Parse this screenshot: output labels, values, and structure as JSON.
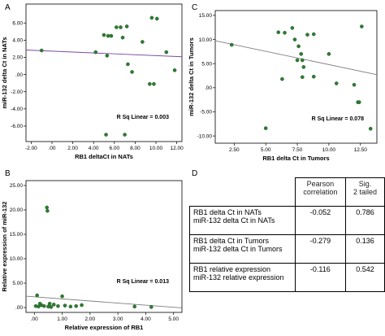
{
  "panel_labels": [
    "A",
    "B",
    "C",
    "D"
  ],
  "chart_data": [
    {
      "panel": "A",
      "type": "scatter",
      "xlabel": "RB1 deltaCt in NATs",
      "ylabel": "miR-132 delta Ct in NATs",
      "xlim": [
        -2.5,
        12.5
      ],
      "ylim": [
        -7.8,
        8.2
      ],
      "xticks": [
        -2,
        0,
        2,
        4,
        6,
        8,
        10,
        12
      ],
      "xtick_labels": [
        "-2.00",
        ".00",
        "2.00",
        "4.00",
        "6.00",
        "8.00",
        "10.00",
        "12.00"
      ],
      "yticks": [
        6,
        4,
        2,
        0,
        -2,
        -4,
        -6
      ],
      "ytick_labels": [
        "6.00",
        "4.00",
        "2.00",
        ".00",
        "-2.00",
        "-4.00",
        "-6.00"
      ],
      "points": [
        [
          -1.0,
          2.8
        ],
        [
          4.2,
          2.6
        ],
        [
          5.0,
          4.6
        ],
        [
          5.4,
          4.5
        ],
        [
          5.7,
          4.5
        ],
        [
          5.3,
          2.2
        ],
        [
          6.2,
          5.5
        ],
        [
          6.6,
          5.5
        ],
        [
          6.8,
          4.3
        ],
        [
          7.3,
          1.2
        ],
        [
          7.7,
          0.3
        ],
        [
          8.7,
          3.8
        ],
        [
          9.6,
          6.6
        ],
        [
          10.1,
          6.5
        ],
        [
          9.4,
          -1.1
        ],
        [
          9.8,
          -1.1
        ],
        [
          11.0,
          2.6
        ],
        [
          11.8,
          0.5
        ],
        [
          5.2,
          -7.0
        ],
        [
          7.0,
          -7.0
        ],
        [
          7.2,
          5.6
        ]
      ],
      "fit": {
        "intercept": 2.72,
        "slope": -0.052
      },
      "annotation": "R Sq Linear = 0.003"
    },
    {
      "panel": "B",
      "type": "scatter",
      "xlabel": "Relative expression of RB1",
      "ylabel": "Relative expression of miR-132",
      "xlim": [
        -0.3,
        5.3
      ],
      "ylim": [
        -1.0,
        26.0
      ],
      "xticks": [
        0,
        1,
        2,
        3,
        4,
        5
      ],
      "xtick_labels": [
        ".00",
        "1.00",
        "2.00",
        "3.00",
        "4.00",
        "5.00"
      ],
      "yticks": [
        0,
        5,
        10,
        15,
        20,
        25
      ],
      "ytick_labels": [
        ".00",
        "5.00",
        "10.00",
        "15.00",
        "20.00",
        "25.00"
      ],
      "points": [
        [
          0.45,
          20.5
        ],
        [
          0.47,
          19.8
        ],
        [
          0.1,
          2.5
        ],
        [
          0.05,
          0.3
        ],
        [
          0.15,
          0.2
        ],
        [
          0.25,
          0.5
        ],
        [
          0.35,
          0.3
        ],
        [
          0.5,
          0.2
        ],
        [
          0.55,
          0.8
        ],
        [
          0.7,
          0.6
        ],
        [
          0.85,
          0.3
        ],
        [
          1.0,
          2.3
        ],
        [
          1.1,
          0.4
        ],
        [
          1.3,
          0.2
        ],
        [
          1.5,
          0.3
        ],
        [
          1.7,
          0.5
        ],
        [
          3.6,
          0.2
        ],
        [
          4.2,
          0.1
        ],
        [
          0.2,
          0.8
        ],
        [
          0.6,
          0.1
        ]
      ],
      "fit": {
        "intercept": 2.2,
        "slope": -0.43
      },
      "annotation": "R Sq Linear = 0.013"
    },
    {
      "panel": "C",
      "type": "scatter",
      "xlabel": "RB1 delta Ct in Tumors",
      "ylabel": "miR-132 delta Ct in Tumors",
      "xlim": [
        1.0,
        13.8
      ],
      "ylim": [
        -11.5,
        16.0
      ],
      "xticks": [
        2.5,
        5.0,
        7.5,
        10.0,
        12.5
      ],
      "xtick_labels": [
        "2.50",
        "5.00",
        "7.50",
        "10.00",
        "12.50"
      ],
      "yticks": [
        15,
        10,
        5,
        0,
        -5,
        -10
      ],
      "ytick_labels": [
        "15.00",
        "10.00",
        "5.00",
        ".00",
        "-5.00",
        "-10.00"
      ],
      "points": [
        [
          2.3,
          8.9
        ],
        [
          6.0,
          11.5
        ],
        [
          6.5,
          11.4
        ],
        [
          7.3,
          10.0
        ],
        [
          7.6,
          8.6
        ],
        [
          8.3,
          11.0
        ],
        [
          8.8,
          11.1
        ],
        [
          7.8,
          7.0
        ],
        [
          7.5,
          5.7
        ],
        [
          7.9,
          5.7
        ],
        [
          8.0,
          4.3
        ],
        [
          7.9,
          2.2
        ],
        [
          6.3,
          1.8
        ],
        [
          8.8,
          2.3
        ],
        [
          10.0,
          7.0
        ],
        [
          10.6,
          0.9
        ],
        [
          12.0,
          0.6
        ],
        [
          12.6,
          12.7
        ],
        [
          12.3,
          -3.0
        ],
        [
          12.4,
          -3.0
        ],
        [
          5.0,
          -8.4
        ],
        [
          13.3,
          -8.5
        ],
        [
          7.1,
          12.4
        ]
      ],
      "fit": {
        "intercept": 10.3,
        "slope": -0.55
      },
      "annotation": "R Sq Linear = 0.078"
    }
  ],
  "table": {
    "headers": [
      "",
      "Pearson\ncorrelation",
      "Sig.\n2 tailed"
    ],
    "rows": [
      {
        "label": "RB1 delta Ct in NATs\nmiR-132 delta Ct in NATs",
        "pearson": "-0.052",
        "sig": "0.786"
      },
      {
        "label": "RB1 delta Ct in Tumors\nmiR-132 delta Ct in Tumors",
        "pearson": "-0.279",
        "sig": "0.136"
      },
      {
        "label": "RB1 relative expression\nmiR-132 relative expression",
        "pearson": "-0.116",
        "sig": "0.542"
      }
    ]
  },
  "colors": {
    "point": "#2e7d32",
    "point_stroke": "#1b4d1e",
    "fit_a": "#7a4aa0",
    "fit": "#7f7f7f"
  }
}
